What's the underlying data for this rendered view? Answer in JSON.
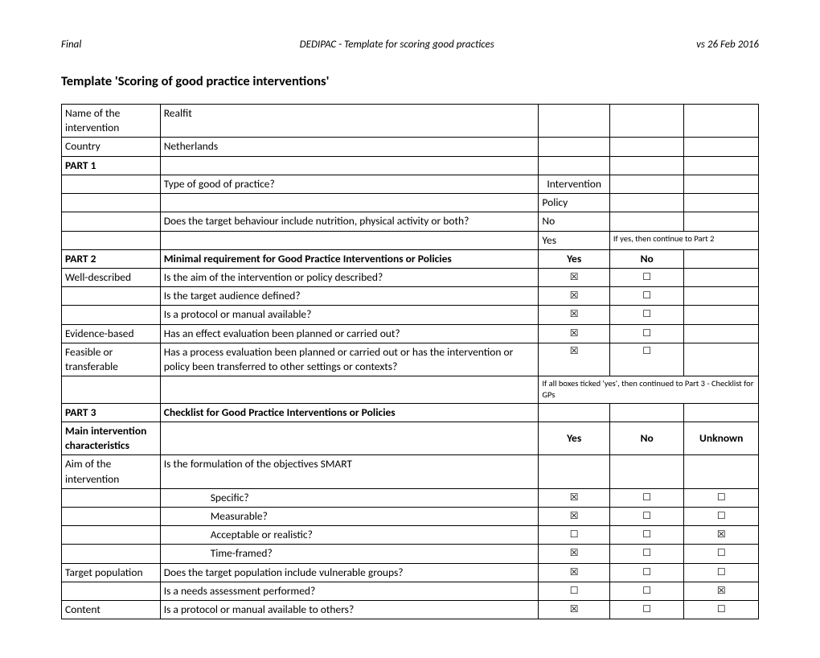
{
  "header": {
    "left": "Final",
    "center": "DEDIPAC - Template for scoring good practices",
    "right": "vs 26 Feb 2016"
  },
  "title": "Template 'Scoring of good practice interventions'",
  "glyphs": {
    "checked": "☒",
    "unchecked": "☐"
  },
  "rows": {
    "intervention_name_label": "Name of the intervention",
    "intervention_name_value": "Realfit",
    "country_label": "Country",
    "country_value": "Netherlands",
    "part1": "PART 1",
    "type_practice": "Type of good of practice?",
    "intervention": "Intervention",
    "policy": "Policy",
    "target_behaviour": "Does the target behaviour include nutrition, physical activity or both?",
    "no": "No",
    "yes": "Yes",
    "note_part2": "If yes, then continue to Part 2",
    "part2": "PART 2",
    "part2_header": "Minimal requirement for Good Practice Interventions or Policies",
    "well_described": "Well-described",
    "q_aim": "Is the aim of the intervention or policy described?",
    "q_audience": "Is the target audience defined?",
    "q_protocol": "Is a protocol or manual available?",
    "evidence_based": "Evidence-based",
    "q_effect": "Has an effect evaluation been planned or carried out?",
    "feasible": "Feasible or transferable",
    "q_process": "Has a process evaluation been planned or carried out or has the intervention or policy been transferred to other settings or contexts?",
    "note_part3": "If all boxes ticked 'yes', then continued to Part 3 - Checklist for GPs",
    "part3": "PART 3",
    "part3_header": "Checklist for Good Practice Interventions or Policies",
    "main_char": "Main intervention characteristics",
    "unknown": "Unknown",
    "aim_label": "Aim of the intervention",
    "smart": "Is the formulation of the objectives SMART",
    "specific": "Specific?",
    "measurable": "Measurable?",
    "acceptable": "Acceptable or realistic?",
    "timeframed": "Time-framed?",
    "target_pop": "Target population",
    "q_vulnerable": "Does the target population include vulnerable groups?",
    "q_needs": "Is a needs assessment performed?",
    "content_label": "Content",
    "q_protocol_others": "Is a protocol or manual available to others?"
  }
}
